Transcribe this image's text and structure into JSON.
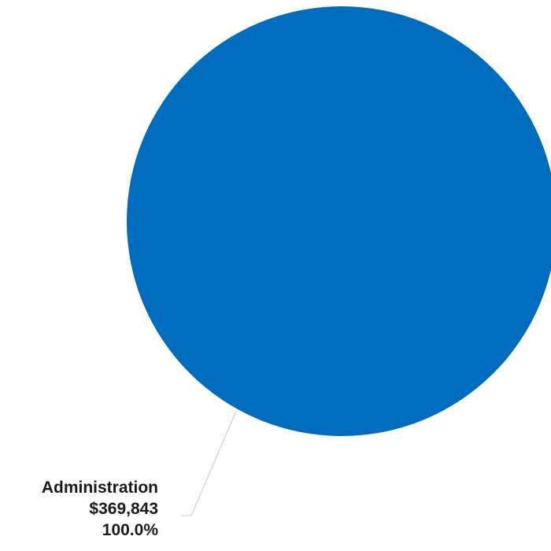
{
  "chart_data": {
    "type": "pie",
    "slices": [
      {
        "category": "Administration",
        "value": 369843,
        "value_label": "$369,843",
        "percent": 100.0,
        "percent_label": "100.0%",
        "color": "#006CBE"
      }
    ]
  }
}
